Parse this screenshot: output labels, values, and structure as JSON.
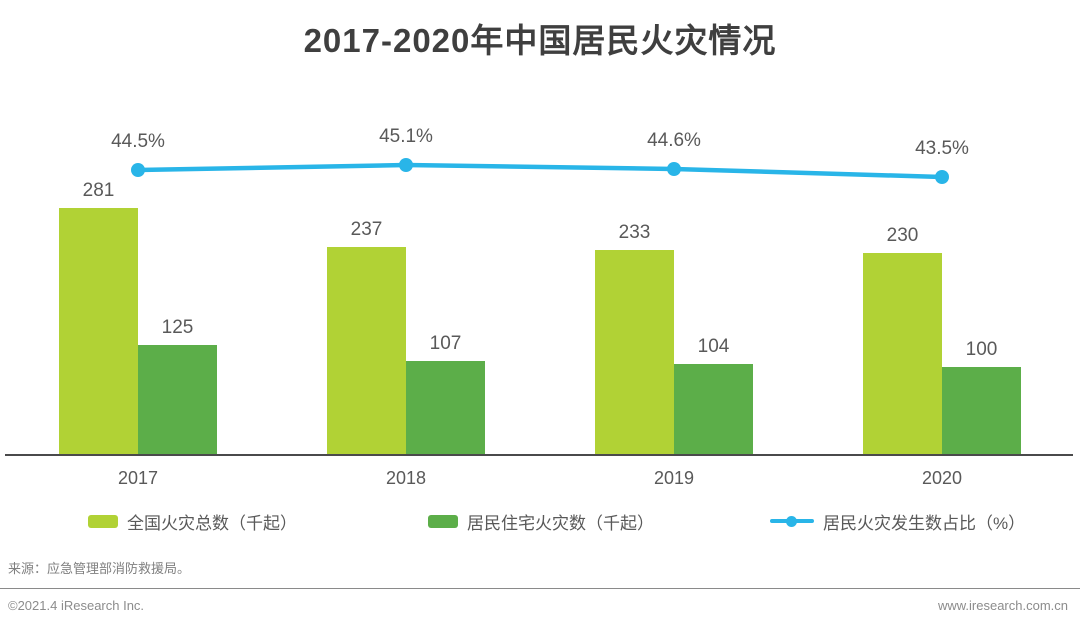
{
  "page": {
    "title": "2017-2020年中国居民火灾情况"
  },
  "chart_data": {
    "type": "bar",
    "subtype": "grouped-bar-with-line",
    "title": "2017-2020年中国居民火灾情况",
    "categories": [
      "2017",
      "2018",
      "2019",
      "2020"
    ],
    "series": [
      {
        "name": "全国火灾总数（千起）",
        "type": "bar",
        "color": "#b1d235",
        "values": [
          281,
          237,
          233,
          230
        ]
      },
      {
        "name": "居民住宅火灾数（千起）",
        "type": "bar",
        "color": "#5cae49",
        "values": [
          125,
          107,
          104,
          100
        ]
      },
      {
        "name": "居民火灾发生数占比（%）",
        "type": "line",
        "color": "#29b5e8",
        "values": [
          44.5,
          45.1,
          44.6,
          43.5
        ],
        "value_labels": [
          "44.5%",
          "45.1%",
          "44.6%",
          "43.5%"
        ]
      }
    ],
    "xlabel": "",
    "ylabel": "",
    "grid": false,
    "y_axis_visible": false,
    "legend_position": "bottom"
  },
  "legend": [
    {
      "label": "全国火灾总数（千起）",
      "marker": "square",
      "color": "#b1d235"
    },
    {
      "label": "居民住宅火灾数（千起）",
      "marker": "square",
      "color": "#5cae49"
    },
    {
      "label": "居民火灾发生数占比（%）",
      "marker": "line-dot",
      "color": "#29b5e8"
    }
  ],
  "source_note": "来源：应急管理部消防救援局。",
  "footer": {
    "copyright": "©2021.4 iResearch Inc.",
    "website": "www.iresearch.com.cn"
  },
  "colors": {
    "bar_total": "#b1d235",
    "bar_residential": "#5cae49",
    "trend_line": "#29b5e8",
    "title_text": "#3f3f3f",
    "label_text": "#595959",
    "axis_line": "#4a4a4b"
  }
}
